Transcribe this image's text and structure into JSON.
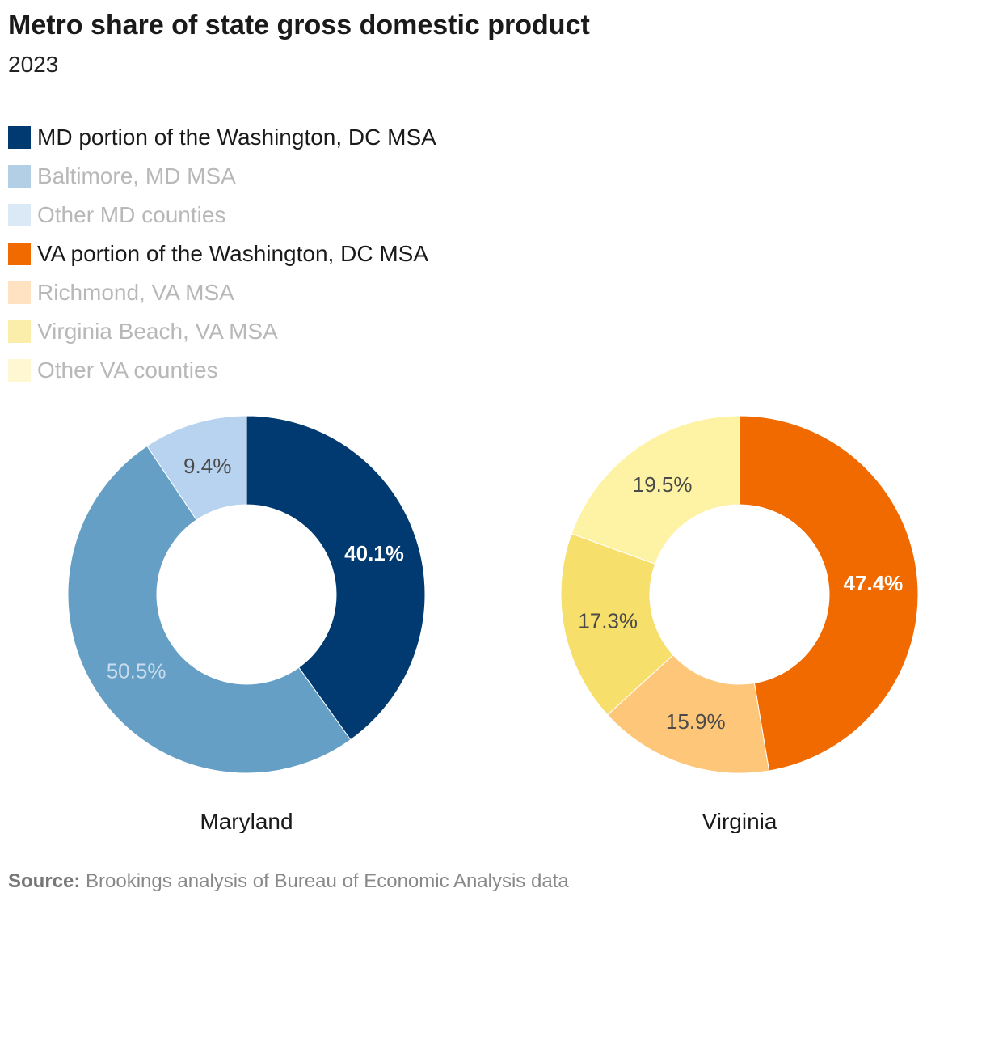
{
  "title": "Metro share of state gross domestic product",
  "subtitle": "2023",
  "legend": [
    {
      "label": "MD portion of the Washington, DC MSA",
      "color": "#003a70",
      "emphasis": true
    },
    {
      "label": "Baltimore, MD MSA",
      "color": "#b3cfe5",
      "emphasis": false
    },
    {
      "label": "Other MD counties",
      "color": "#dbe8f5",
      "emphasis": false
    },
    {
      "label": "VA portion of the Washington, DC MSA",
      "color": "#f06a00",
      "emphasis": true
    },
    {
      "label": "Richmond, VA MSA",
      "color": "#ffe2c2",
      "emphasis": false
    },
    {
      "label": "Virginia Beach, VA MSA",
      "color": "#fbeeaa",
      "emphasis": false
    },
    {
      "label": "Other VA counties",
      "color": "#fff7d1",
      "emphasis": false
    }
  ],
  "chart_data": [
    {
      "type": "pie",
      "donut": true,
      "label": "Maryland",
      "slices": [
        {
          "name": "MD portion of the Washington, DC MSA",
          "value": 40.1,
          "label": "40.1%",
          "color": "#003a70",
          "label_color": "#ffffff",
          "bold": true
        },
        {
          "name": "Baltimore, MD MSA",
          "value": 50.5,
          "label": "50.5%",
          "color": "#659fc6",
          "label_color": "#c9dced",
          "bold": false
        },
        {
          "name": "Other MD counties",
          "value": 9.4,
          "label": "9.4%",
          "color": "#b7d3ef",
          "label_color": "#4a4a4a",
          "bold": false
        }
      ]
    },
    {
      "type": "pie",
      "donut": true,
      "label": "Virginia",
      "slices": [
        {
          "name": "VA portion of the Washington, DC MSA",
          "value": 47.4,
          "label": "47.4%",
          "color": "#f06a00",
          "label_color": "#ffffff",
          "bold": true
        },
        {
          "name": "Richmond, VA MSA",
          "value": 15.9,
          "label": "15.9%",
          "color": "#fec679",
          "label_color": "#4a4a4a",
          "bold": false
        },
        {
          "name": "Virginia Beach, VA MSA",
          "value": 17.3,
          "label": "17.3%",
          "color": "#f7df6b",
          "label_color": "#4a4a4a",
          "bold": false
        },
        {
          "name": "Other VA counties",
          "value": 19.5,
          "label": "19.5%",
          "color": "#fef3a4",
          "label_color": "#4a4a4a",
          "bold": false
        }
      ]
    }
  ],
  "source": {
    "prefix": "Source:",
    "text": "Brookings analysis of Bureau of Economic Analysis data"
  }
}
